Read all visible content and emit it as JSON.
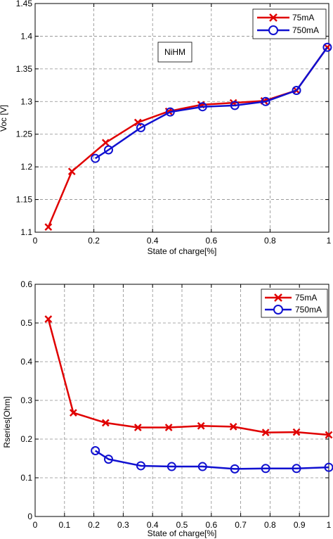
{
  "chart_data": [
    {
      "type": "line",
      "title": "",
      "xlabel": "State of charge[%]",
      "ylabel": "Voc [V]",
      "xlim": [
        0,
        1
      ],
      "ylim": [
        1.1,
        1.45
      ],
      "xticks": [
        0,
        0.2,
        0.4,
        0.6,
        0.8,
        1
      ],
      "xtick_labels": [
        "0",
        "0.2",
        "0.4",
        "0.6",
        "0.8",
        "1"
      ],
      "yticks": [
        1.1,
        1.15,
        1.2,
        1.25,
        1.3,
        1.35,
        1.4,
        1.45
      ],
      "ytick_labels": [
        "1.1",
        "1.15",
        "1.2",
        "1.25",
        "1.3",
        "1.35",
        "1.4",
        "1.45"
      ],
      "grid": true,
      "legend_position": "top-right",
      "annotation": "NiHM",
      "series": [
        {
          "name": "75mA",
          "color": "#e00000",
          "marker": "x",
          "x": [
            0.045,
            0.125,
            0.24,
            0.35,
            0.455,
            0.565,
            0.675,
            0.78,
            0.89,
            0.995
          ],
          "y": [
            1.108,
            1.193,
            1.237,
            1.268,
            1.285,
            1.295,
            1.298,
            1.301,
            1.317,
            1.383
          ]
        },
        {
          "name": "750mA",
          "color": "#1010d0",
          "marker": "o",
          "x": [
            0.205,
            0.25,
            0.36,
            0.46,
            0.57,
            0.68,
            0.785,
            0.89,
            0.995
          ],
          "y": [
            1.213,
            1.226,
            1.26,
            1.284,
            1.292,
            1.294,
            1.3,
            1.317,
            1.383
          ]
        }
      ]
    },
    {
      "type": "line",
      "title": "",
      "xlabel": "State of charge[%]",
      "ylabel": "Rseries[Ohm]",
      "xlim": [
        0,
        1
      ],
      "ylim": [
        0,
        0.6
      ],
      "xticks": [
        0,
        0.1,
        0.2,
        0.3,
        0.4,
        0.5,
        0.6,
        0.7,
        0.8,
        0.9,
        1
      ],
      "xtick_labels": [
        "0",
        "0.1",
        "0.2",
        "0.3",
        "0.4",
        "0.5",
        "0.6",
        "0.7",
        "0.8",
        "0.9",
        "1"
      ],
      "yticks": [
        0,
        0.1,
        0.2,
        0.3,
        0.4,
        0.5,
        0.6
      ],
      "ytick_labels": [
        "0",
        "0.1",
        "0.2",
        "0.3",
        "0.4",
        "0.5",
        "0.6"
      ],
      "grid": true,
      "legend_position": "top-right",
      "series": [
        {
          "name": "75mA",
          "color": "#e00000",
          "marker": "x",
          "x": [
            0.045,
            0.13,
            0.24,
            0.35,
            0.455,
            0.565,
            0.675,
            0.785,
            0.89,
            1.0
          ],
          "y": [
            0.51,
            0.268,
            0.242,
            0.23,
            0.23,
            0.234,
            0.232,
            0.217,
            0.218,
            0.211
          ]
        },
        {
          "name": "750mA",
          "color": "#1010d0",
          "marker": "o",
          "x": [
            0.205,
            0.25,
            0.36,
            0.465,
            0.57,
            0.68,
            0.785,
            0.89,
            1.0
          ],
          "y": [
            0.17,
            0.148,
            0.131,
            0.129,
            0.129,
            0.123,
            0.124,
            0.124,
            0.127
          ]
        }
      ]
    }
  ]
}
